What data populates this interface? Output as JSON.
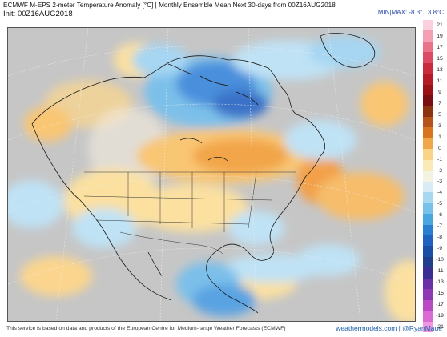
{
  "header": {
    "title": "ECMWF M-EPS 2-meter Temperature Anomaly [°C] | Monthly Ensemble Mean Next 30-days from 00Z16AUG2018",
    "init": "Init: 00Z16AUG2018",
    "minmax": "MIN|MAX: -8.3° | 3.8°C"
  },
  "colorbar": {
    "labels": [
      "21",
      "19",
      "17",
      "15",
      "13",
      "11",
      "9",
      "7",
      "5",
      "3",
      "1",
      "0",
      "-1",
      "-2",
      "-3",
      "-4",
      "-5",
      "-6",
      "-7",
      "-8",
      "-9",
      "-10",
      "-11",
      "-13",
      "-15",
      "-17",
      "-19",
      "-21"
    ],
    "colors": [
      "#fbd0de",
      "#f4a0b4",
      "#e9748a",
      "#dc4a63",
      "#c92a3c",
      "#b51a28",
      "#9a1218",
      "#7a0e12",
      "#8c3410",
      "#b4531a",
      "#d7741f",
      "#f0a74a",
      "#f9d486",
      "#fbe9b6",
      "#f4f3e2",
      "#d8ecf6",
      "#a8d8f0",
      "#78c2ea",
      "#4aa6e0",
      "#2a7fd1",
      "#1f62bf",
      "#1b4fa4",
      "#223f8e",
      "#3b2f93",
      "#6a30a5",
      "#9037b3",
      "#b84ac2",
      "#da6ad4",
      "#ef96e2"
    ]
  },
  "footer": {
    "source": "This service is based on data and products of the European Centre for Medium-range Weather Forecasts (ECMWF)",
    "credit": "weathermodels.com | @RyanMaue"
  }
}
